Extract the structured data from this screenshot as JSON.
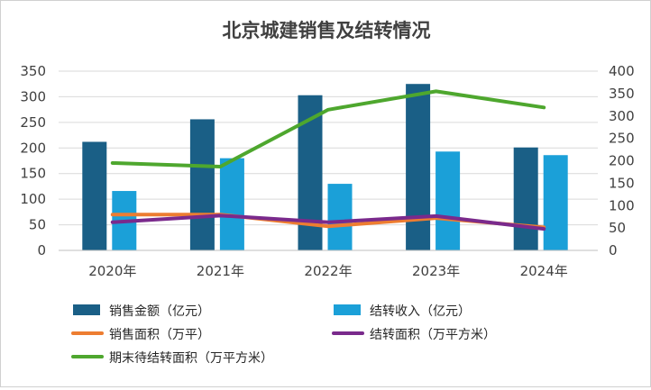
{
  "chart_data": {
    "type": "bar",
    "title": "北京城建销售及结转情况",
    "categories": [
      "2020年",
      "2021年",
      "2022年",
      "2023年",
      "2024年"
    ],
    "y_left": {
      "min": 0,
      "max": 350,
      "step": 50,
      "ticks": [
        "0",
        "50",
        "100",
        "150",
        "200",
        "250",
        "300",
        "350"
      ]
    },
    "y_right": {
      "min": 0,
      "max": 400,
      "step": 50,
      "ticks": [
        "0",
        "50",
        "100",
        "150",
        "200",
        "250",
        "300",
        "350",
        "400"
      ]
    },
    "grid": true,
    "legend_position": "bottom",
    "series": [
      {
        "name": "销售金额（亿元）",
        "kind": "bar",
        "axis": "left",
        "color": "#1a5f86",
        "values": [
          212,
          256,
          303,
          325,
          201
        ]
      },
      {
        "name": "结转收入（亿元）",
        "kind": "bar",
        "axis": "left",
        "color": "#1ba0d8",
        "values": [
          116,
          180,
          130,
          193,
          186
        ]
      },
      {
        "name": "销售面积（万平）",
        "kind": "line",
        "axis": "left",
        "color": "#ed7d31",
        "values": [
          70,
          70,
          47,
          63,
          45
        ]
      },
      {
        "name": "结转面积（万平方米）",
        "kind": "line",
        "axis": "left",
        "color": "#7a2a8c",
        "values": [
          55,
          68,
          55,
          67,
          42
        ]
      },
      {
        "name": "期末待结转面积（万平方米）",
        "kind": "line",
        "axis": "right",
        "color": "#4ea72e",
        "values": [
          195,
          187,
          314,
          355,
          319
        ]
      }
    ]
  }
}
